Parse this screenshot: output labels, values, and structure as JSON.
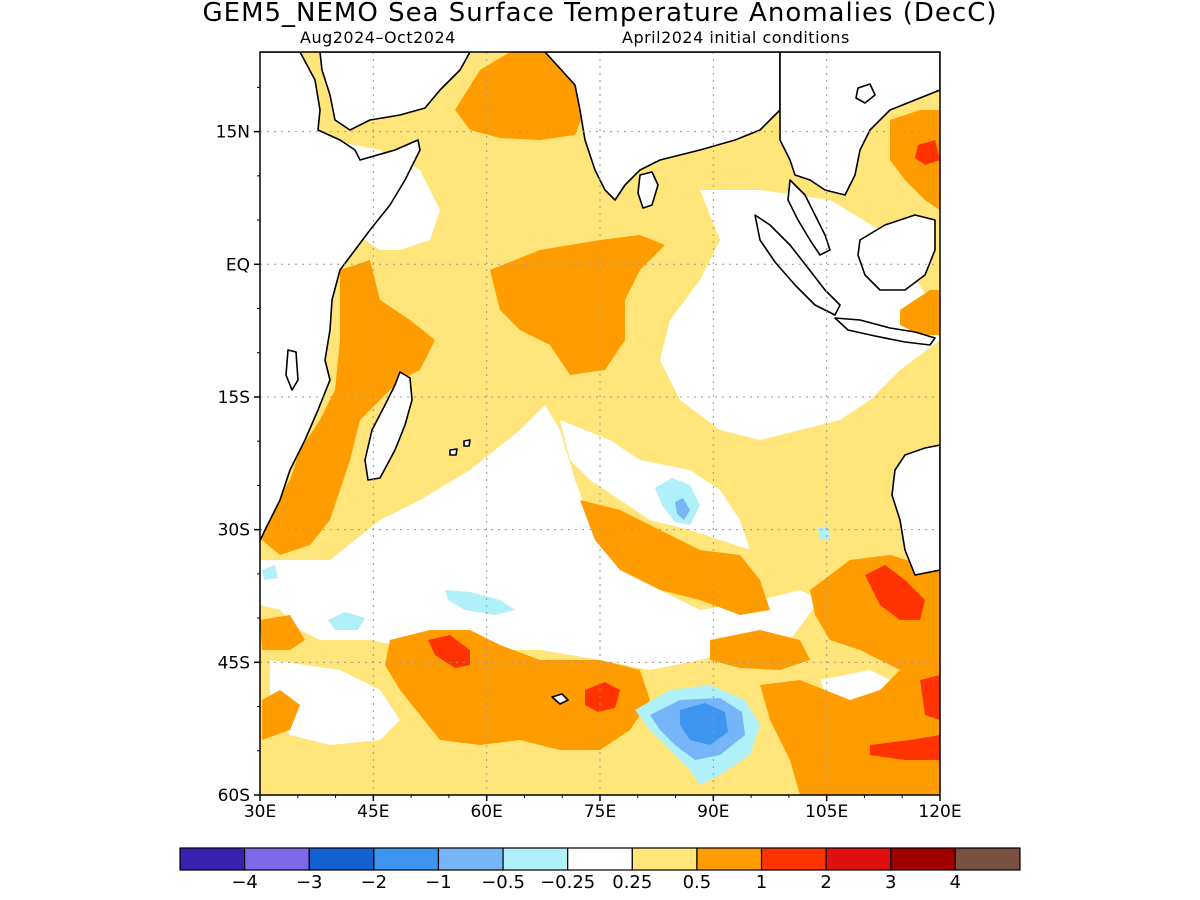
{
  "title": "GEM5_NEMO Sea Surface Temperature Anomalies (DecC)",
  "subtitle_left": "Aug2024–Oct2024",
  "subtitle_right": "April2024 initial conditions",
  "axes": {
    "lat_labels": [
      "15N",
      "EQ",
      "15S",
      "30S",
      "45S",
      "60S"
    ],
    "lat_values": [
      15,
      0,
      -15,
      -30,
      -45,
      -60
    ],
    "lon_labels": [
      "30E",
      "45E",
      "60E",
      "75E",
      "90E",
      "105E",
      "120E"
    ],
    "lon_values": [
      30,
      45,
      60,
      75,
      90,
      105,
      120
    ],
    "lat_range": [
      -60,
      24
    ],
    "lon_range": [
      30,
      120
    ],
    "grid": "dotted"
  },
  "colorbar": {
    "colors": [
      "#3a22b0",
      "#7d6ae8",
      "#1360d0",
      "#3d95f0",
      "#76b6f8",
      "#b0f0f8",
      "#ffffff",
      "#ffe57a",
      "#ff9d00",
      "#ff3300",
      "#e01010",
      "#a00000",
      "#7a5040"
    ],
    "labels": [
      "−4",
      "−3",
      "−2",
      "−1",
      "−0.5",
      "−0.25",
      "0.25",
      "0.5",
      "1",
      "2",
      "3",
      "4"
    ],
    "label_values": [
      -4,
      -3,
      -2,
      -1,
      -0.5,
      -0.25,
      0.25,
      0.5,
      1,
      2,
      3,
      4
    ]
  },
  "colors": {
    "land": "#ffffff",
    "coast": "#000000",
    "neutral": "#ffffff",
    "warm_light": "#ffe57a",
    "warm": "#ff9d00",
    "hot": "#ff3300",
    "cool_light": "#b0f0f8",
    "cool_mid": "#76b6f8",
    "cool": "#3d95f0"
  }
}
